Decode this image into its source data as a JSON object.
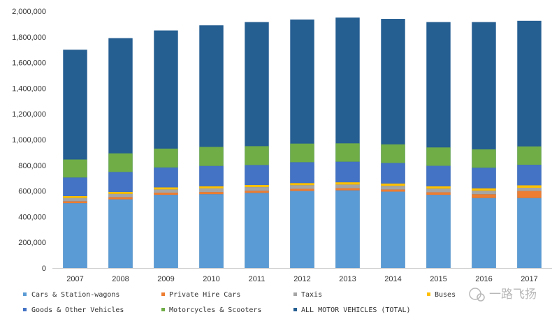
{
  "chart_data": {
    "type": "bar",
    "stacked_overlay": true,
    "categories": [
      "2007",
      "2008",
      "2009",
      "2010",
      "2011",
      "2012",
      "2013",
      "2014",
      "2015",
      "2016",
      "2017"
    ],
    "ylim": [
      0,
      2000000
    ],
    "yticks": [
      "0",
      "200,000",
      "400,000",
      "600,000",
      "800,000",
      "1,000,000",
      "1,200,000",
      "1,400,000",
      "1,600,000",
      "1,800,000",
      "2,000,000"
    ],
    "ytick_values": [
      0,
      200000,
      400000,
      600000,
      800000,
      1000000,
      1200000,
      1400000,
      1600000,
      1800000,
      2000000
    ],
    "grid": false,
    "legend_position": "bottom",
    "series": [
      {
        "name": "Cars & Station-wagons",
        "color": "#5b9bd5",
        "values": [
          505000,
          535000,
          570000,
          575000,
          585000,
          600000,
          605000,
          595000,
          570000,
          545000,
          545000
        ]
      },
      {
        "name": "Private Hire Cars",
        "color": "#ed7d31",
        "values": [
          15000,
          17000,
          17000,
          17000,
          17000,
          17000,
          17000,
          17000,
          20000,
          30000,
          55000
        ]
      },
      {
        "name": "Taxis",
        "color": "#a5a5a5",
        "values": [
          25000,
          25000,
          25000,
          28000,
          28000,
          28000,
          28000,
          28000,
          28000,
          27000,
          25000
        ]
      },
      {
        "name": "Buses",
        "color": "#ffc000",
        "values": [
          15000,
          16000,
          16000,
          17000,
          17000,
          17000,
          18000,
          18000,
          18000,
          19000,
          19000
        ]
      },
      {
        "name": "Goods & Other Vehicles",
        "color": "#4472c4",
        "values": [
          145000,
          155000,
          155000,
          158000,
          155000,
          162000,
          160000,
          160000,
          160000,
          160000,
          160000
        ]
      },
      {
        "name": "Motorcycles & Scooters",
        "color": "#70ad47",
        "values": [
          140000,
          145000,
          147000,
          148000,
          147000,
          145000,
          143000,
          145000,
          143000,
          143000,
          143000
        ]
      },
      {
        "name": "ALL MOTOR VEHICLES (TOTAL)",
        "color": "#255e91",
        "values": [
          1700000,
          1790000,
          1850000,
          1890000,
          1915000,
          1935000,
          1950000,
          1940000,
          1915000,
          1915000,
          1925000
        ]
      }
    ]
  },
  "watermark": {
    "text": "一路飞扬"
  },
  "legend_labels": {
    "s0": "Cars & Station-wagons",
    "s1": "Private Hire Cars",
    "s2": "Taxis",
    "s3": "Buses",
    "s4": "Goods & Other Vehicles",
    "s5": "Motorcycles & Scooters",
    "s6": "ALL MOTOR VEHICLES (TOTAL)"
  }
}
